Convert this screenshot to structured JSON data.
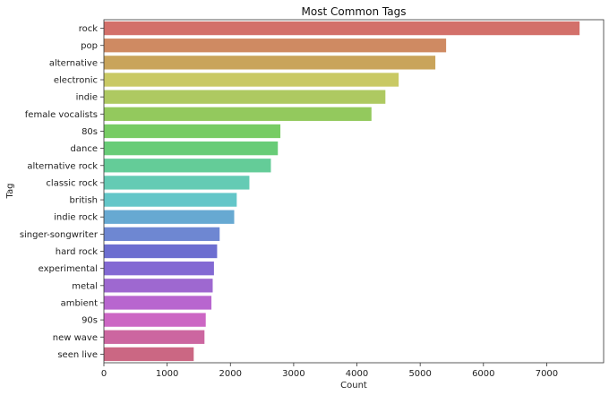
{
  "chart_data": {
    "type": "bar",
    "orientation": "horizontal",
    "title": "Most Common Tags",
    "xlabel": "Count",
    "ylabel": "Tag",
    "xlim": [
      0,
      7900
    ],
    "xticks": [
      0,
      1000,
      2000,
      3000,
      4000,
      5000,
      6000,
      7000
    ],
    "grid": false,
    "categories": [
      "rock",
      "pop",
      "alternative",
      "electronic",
      "indie",
      "female vocalists",
      "80s",
      "dance",
      "alternative rock",
      "classic rock",
      "british",
      "indie rock",
      "singer-songwriter",
      "hard rock",
      "experimental",
      "metal",
      "ambient",
      "90s",
      "new wave",
      "seen live"
    ],
    "values": [
      7520,
      5410,
      5240,
      4660,
      4450,
      4230,
      2790,
      2750,
      2640,
      2300,
      2100,
      2060,
      1830,
      1790,
      1740,
      1720,
      1700,
      1610,
      1590,
      1420
    ],
    "colors": [
      "#d3706a",
      "#cf8a62",
      "#c9a45b",
      "#c9c964",
      "#aec961",
      "#93c95d",
      "#77cc63",
      "#68cc77",
      "#64cc98",
      "#64cbb4",
      "#63c6c8",
      "#67a9d2",
      "#6e87d2",
      "#6c6ed0",
      "#8369d3",
      "#9e68d0",
      "#b866cf",
      "#cc66c4",
      "#cc66a0",
      "#cb6783"
    ]
  }
}
